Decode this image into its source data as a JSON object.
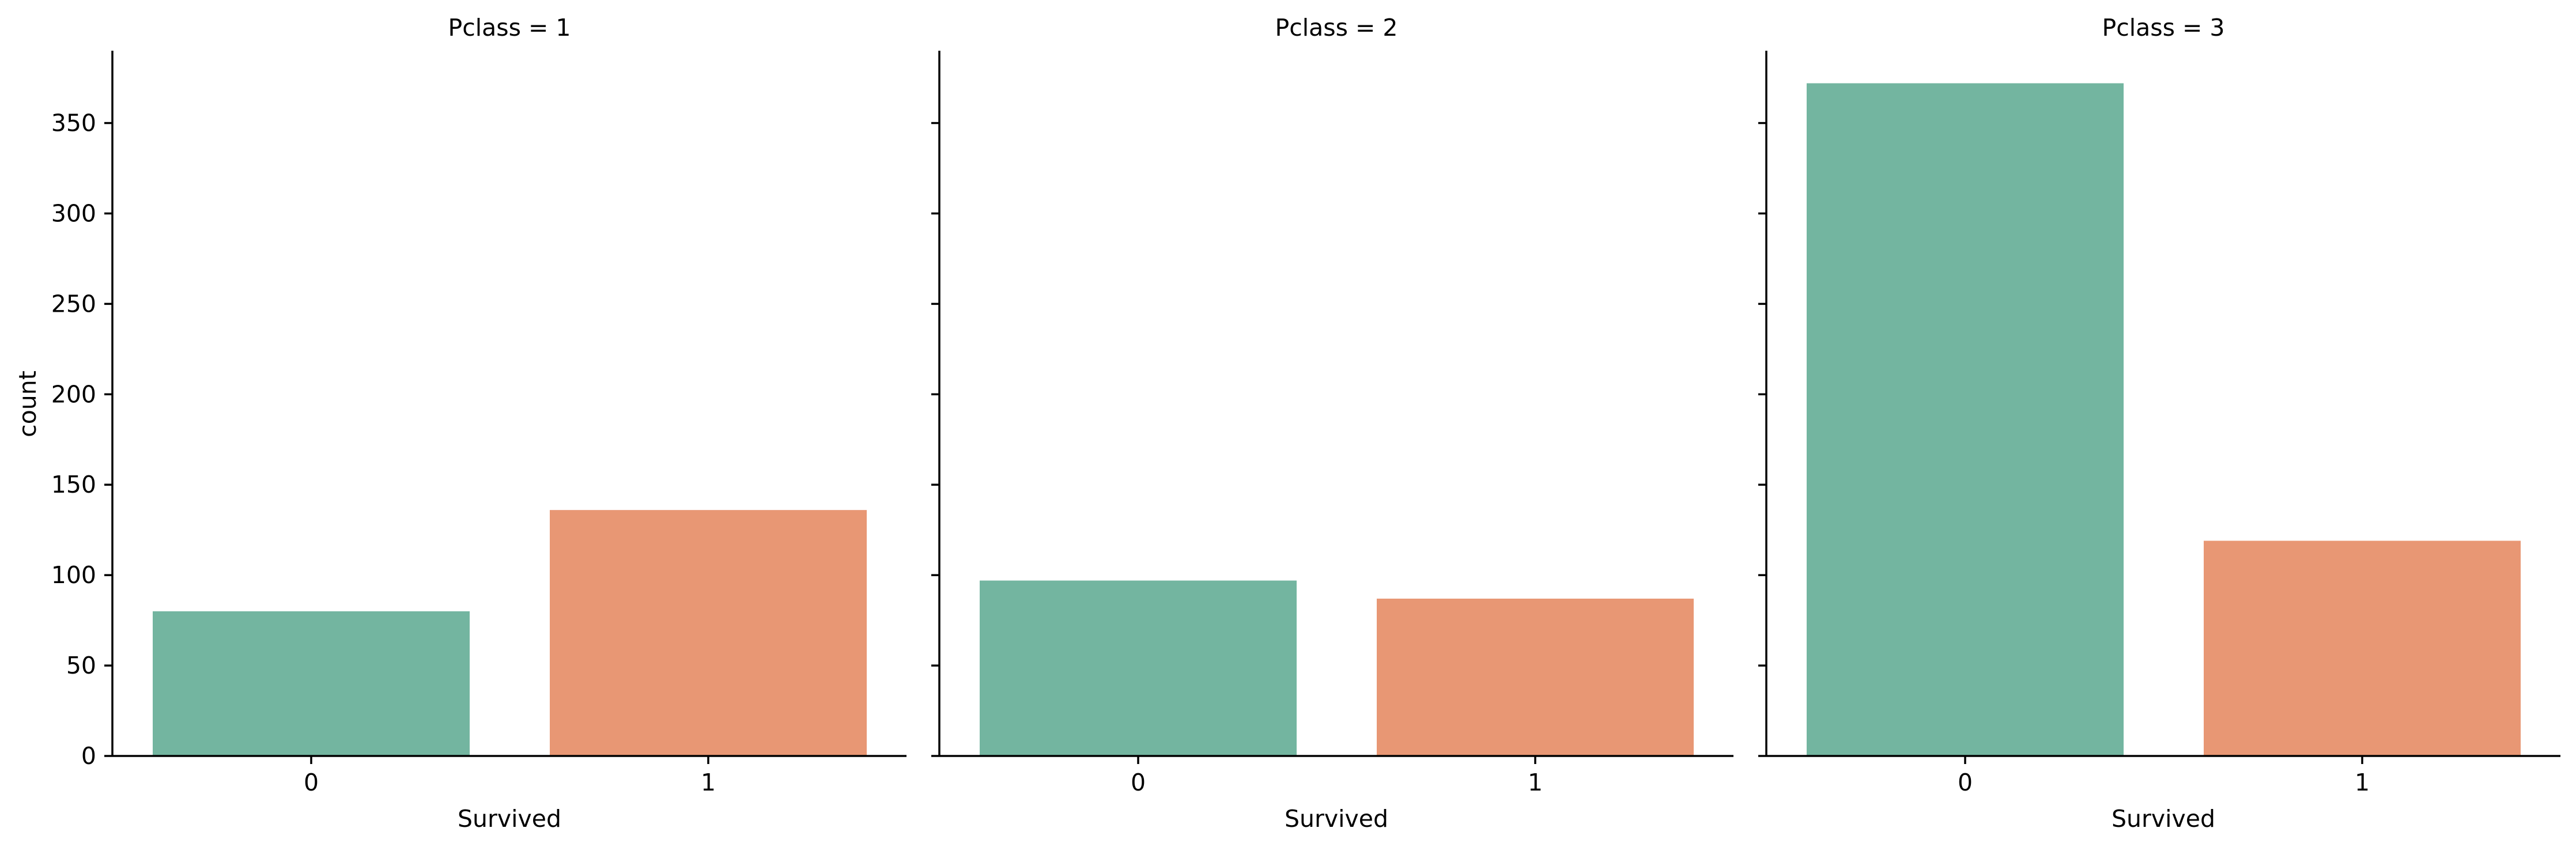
{
  "chart_data": {
    "type": "bar",
    "facet_label": "Pclass",
    "xlabel": "Survived",
    "ylabel": "count",
    "categories": [
      "0",
      "1"
    ],
    "ylim": [
      0,
      390
    ],
    "yticks": [
      0,
      50,
      100,
      150,
      200,
      250,
      300,
      350
    ],
    "colors": [
      "#73b5a0",
      "#e89774"
    ],
    "grid": false,
    "legend": "none",
    "panels": [
      {
        "title": "Pclass = 1",
        "values": [
          80,
          136
        ]
      },
      {
        "title": "Pclass = 2",
        "values": [
          97,
          87
        ]
      },
      {
        "title": "Pclass = 3",
        "values": [
          372,
          119
        ]
      }
    ]
  }
}
